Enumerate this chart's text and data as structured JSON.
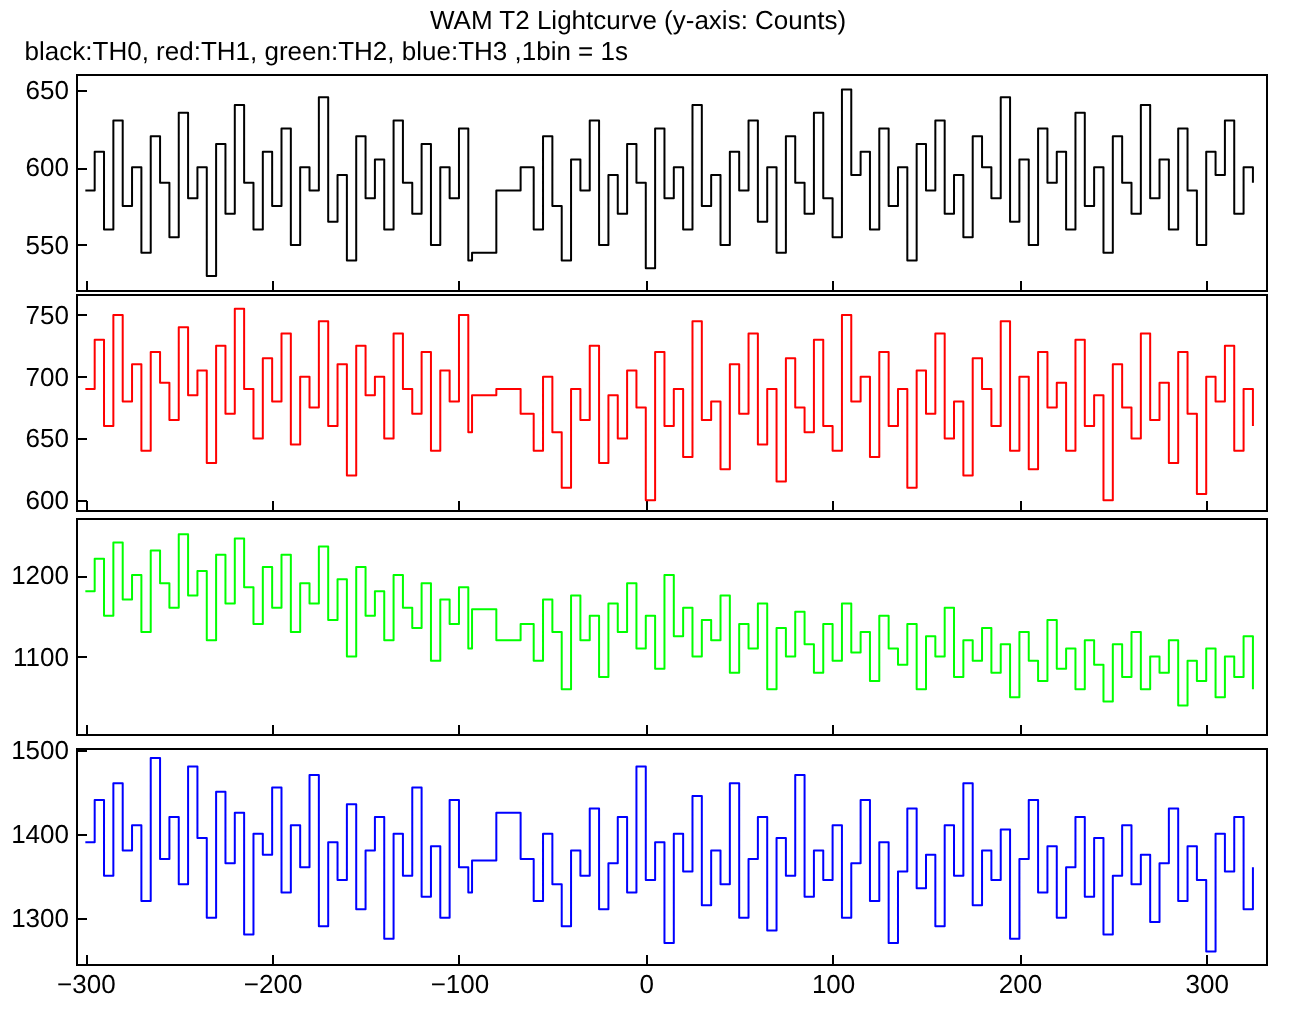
{
  "chart_data": [
    {
      "type": "step",
      "title": "WAM T2 Lightcurve (y-axis: Counts)",
      "subtitle": "black:TH0, red:TH1, green:TH2, blue:TH3 ,1bin = 1s",
      "tick_labels": "y",
      "xlim": [
        -305,
        332
      ],
      "xticks": [
        -300,
        -200,
        -100,
        0,
        100,
        200,
        300
      ],
      "ylim": [
        521,
        660
      ],
      "yticks": [
        550,
        600,
        650
      ],
      "x": [
        -300,
        -295,
        -290,
        -285,
        -280,
        -275,
        -270,
        -265,
        -260,
        -255,
        -250,
        -245,
        -240,
        -235,
        -230,
        -225,
        -220,
        -215,
        -210,
        -205,
        -200,
        -195,
        -190,
        -185,
        -180,
        -175,
        -170,
        -165,
        -160,
        -155,
        -150,
        -145,
        -140,
        -135,
        -130,
        -125,
        -120,
        -115,
        -110,
        -105,
        -100,
        -95,
        -93,
        -80,
        -67,
        -60,
        -55,
        -50,
        -45,
        -40,
        -35,
        -30,
        -25,
        -20,
        -15,
        -10,
        -5,
        0,
        5,
        10,
        15,
        20,
        25,
        30,
        35,
        40,
        45,
        50,
        55,
        60,
        65,
        70,
        75,
        80,
        85,
        90,
        95,
        100,
        105,
        110,
        115,
        120,
        125,
        130,
        135,
        140,
        145,
        150,
        155,
        160,
        165,
        170,
        175,
        180,
        185,
        190,
        195,
        200,
        205,
        210,
        215,
        220,
        225,
        230,
        235,
        240,
        245,
        250,
        255,
        260,
        265,
        270,
        275,
        280,
        285,
        290,
        295,
        300,
        305,
        310,
        315,
        320,
        325
      ],
      "series": [
        {
          "color": "#000000",
          "values": [
            585,
            610,
            560,
            630,
            575,
            600,
            545,
            620,
            590,
            555,
            635,
            580,
            600,
            530,
            615,
            570,
            640,
            590,
            560,
            610,
            575,
            625,
            550,
            600,
            585,
            645,
            565,
            595,
            540,
            620,
            580,
            605,
            560,
            630,
            590,
            570,
            615,
            550,
            600,
            580,
            625,
            540,
            545,
            585,
            600,
            560,
            620,
            575,
            540,
            605,
            585,
            630,
            550,
            595,
            570,
            615,
            590,
            535,
            625,
            580,
            600,
            560,
            640,
            575,
            595,
            550,
            610,
            585,
            630,
            565,
            600,
            545,
            620,
            590,
            570,
            635,
            580,
            555,
            650,
            595,
            610,
            560,
            625,
            575,
            600,
            540,
            615,
            585,
            630,
            570,
            595,
            555,
            620,
            600,
            580,
            645,
            565,
            605,
            550,
            625,
            590,
            610,
            560,
            635,
            575,
            600,
            545,
            620,
            590,
            570,
            640,
            580,
            605,
            560,
            625,
            585,
            550,
            610,
            595,
            630,
            570,
            600,
            590
          ]
        }
      ]
    },
    {
      "type": "step",
      "tick_labels": "y",
      "xlim": [
        -305,
        332
      ],
      "xticks": [
        -300,
        -200,
        -100,
        0,
        100,
        200,
        300
      ],
      "ylim": [
        592,
        767
      ],
      "yticks": [
        600,
        650,
        700,
        750
      ],
      "x": [
        -300,
        -295,
        -290,
        -285,
        -280,
        -275,
        -270,
        -265,
        -260,
        -255,
        -250,
        -245,
        -240,
        -235,
        -230,
        -225,
        -220,
        -215,
        -210,
        -205,
        -200,
        -195,
        -190,
        -185,
        -180,
        -175,
        -170,
        -165,
        -160,
        -155,
        -150,
        -145,
        -140,
        -135,
        -130,
        -125,
        -120,
        -115,
        -110,
        -105,
        -100,
        -95,
        -93,
        -80,
        -67,
        -60,
        -55,
        -50,
        -45,
        -40,
        -35,
        -30,
        -25,
        -20,
        -15,
        -10,
        -5,
        0,
        5,
        10,
        15,
        20,
        25,
        30,
        35,
        40,
        45,
        50,
        55,
        60,
        65,
        70,
        75,
        80,
        85,
        90,
        95,
        100,
        105,
        110,
        115,
        120,
        125,
        130,
        135,
        140,
        145,
        150,
        155,
        160,
        165,
        170,
        175,
        180,
        185,
        190,
        195,
        200,
        205,
        210,
        215,
        220,
        225,
        230,
        235,
        240,
        245,
        250,
        255,
        260,
        265,
        270,
        275,
        280,
        285,
        290,
        295,
        300,
        305,
        310,
        315,
        320,
        325
      ],
      "series": [
        {
          "color": "#ff0000",
          "values": [
            690,
            730,
            660,
            750,
            680,
            710,
            640,
            720,
            695,
            665,
            740,
            685,
            705,
            630,
            725,
            670,
            755,
            690,
            650,
            715,
            680,
            735,
            645,
            700,
            675,
            745,
            660,
            710,
            620,
            725,
            685,
            700,
            650,
            735,
            690,
            670,
            720,
            640,
            705,
            680,
            750,
            655,
            685,
            690,
            670,
            640,
            700,
            655,
            610,
            690,
            665,
            725,
            630,
            685,
            650,
            705,
            675,
            600,
            720,
            660,
            690,
            635,
            745,
            665,
            680,
            625,
            710,
            670,
            735,
            645,
            690,
            615,
            715,
            675,
            655,
            730,
            660,
            640,
            750,
            680,
            700,
            635,
            720,
            660,
            690,
            610,
            705,
            670,
            735,
            650,
            680,
            620,
            715,
            690,
            660,
            745,
            640,
            700,
            625,
            720,
            675,
            695,
            640,
            730,
            660,
            685,
            600,
            710,
            675,
            650,
            735,
            665,
            695,
            630,
            720,
            670,
            605,
            700,
            680,
            725,
            640,
            690,
            660
          ]
        }
      ]
    },
    {
      "type": "step",
      "tick_labels": "y",
      "xlim": [
        -305,
        332
      ],
      "xticks": [
        -300,
        -200,
        -100,
        0,
        100,
        200,
        300
      ],
      "ylim": [
        1005,
        1270
      ],
      "yticks": [
        1100,
        1200
      ],
      "x": [
        -300,
        -295,
        -290,
        -285,
        -280,
        -275,
        -270,
        -265,
        -260,
        -255,
        -250,
        -245,
        -240,
        -235,
        -230,
        -225,
        -220,
        -215,
        -210,
        -205,
        -200,
        -195,
        -190,
        -185,
        -180,
        -175,
        -170,
        -165,
        -160,
        -155,
        -150,
        -145,
        -140,
        -135,
        -130,
        -125,
        -120,
        -115,
        -110,
        -105,
        -100,
        -95,
        -93,
        -80,
        -67,
        -60,
        -55,
        -50,
        -45,
        -40,
        -35,
        -30,
        -25,
        -20,
        -15,
        -10,
        -5,
        0,
        5,
        10,
        15,
        20,
        25,
        30,
        35,
        40,
        45,
        50,
        55,
        60,
        65,
        70,
        75,
        80,
        85,
        90,
        95,
        100,
        105,
        110,
        115,
        120,
        125,
        130,
        135,
        140,
        145,
        150,
        155,
        160,
        165,
        170,
        175,
        180,
        185,
        190,
        195,
        200,
        205,
        210,
        215,
        220,
        225,
        230,
        235,
        240,
        245,
        250,
        255,
        260,
        265,
        270,
        275,
        280,
        285,
        290,
        295,
        300,
        305,
        310,
        315,
        320,
        325
      ],
      "series": [
        {
          "color": "#00ff00",
          "values": [
            1180,
            1220,
            1150,
            1240,
            1170,
            1200,
            1130,
            1230,
            1190,
            1160,
            1250,
            1175,
            1205,
            1120,
            1225,
            1165,
            1245,
            1185,
            1140,
            1210,
            1160,
            1225,
            1130,
            1190,
            1165,
            1235,
            1145,
            1195,
            1100,
            1210,
            1150,
            1180,
            1120,
            1200,
            1160,
            1135,
            1190,
            1095,
            1170,
            1140,
            1185,
            1110,
            1158,
            1120,
            1140,
            1095,
            1170,
            1130,
            1060,
            1175,
            1120,
            1150,
            1075,
            1165,
            1130,
            1190,
            1110,
            1150,
            1085,
            1200,
            1125,
            1160,
            1100,
            1145,
            1120,
            1175,
            1080,
            1140,
            1110,
            1165,
            1060,
            1135,
            1100,
            1155,
            1115,
            1080,
            1140,
            1095,
            1165,
            1105,
            1130,
            1070,
            1150,
            1110,
            1090,
            1140,
            1060,
            1125,
            1100,
            1160,
            1075,
            1120,
            1095,
            1135,
            1080,
            1115,
            1050,
            1130,
            1095,
            1070,
            1145,
            1085,
            1110,
            1060,
            1120,
            1090,
            1045,
            1115,
            1075,
            1130,
            1060,
            1100,
            1080,
            1120,
            1040,
            1095,
            1070,
            1110,
            1050,
            1100,
            1075,
            1125,
            1060
          ]
        }
      ]
    },
    {
      "type": "step",
      "xlim": [
        -305,
        332
      ],
      "xticks": [
        -300,
        -200,
        -100,
        0,
        100,
        200,
        300
      ],
      "ylim": [
        1245,
        1502
      ],
      "yticks": [
        1300,
        1400,
        1500
      ],
      "x": [
        -300,
        -295,
        -290,
        -285,
        -280,
        -275,
        -270,
        -265,
        -260,
        -255,
        -250,
        -245,
        -240,
        -235,
        -230,
        -225,
        -220,
        -215,
        -210,
        -205,
        -200,
        -195,
        -190,
        -185,
        -180,
        -175,
        -170,
        -165,
        -160,
        -155,
        -150,
        -145,
        -140,
        -135,
        -130,
        -125,
        -120,
        -115,
        -110,
        -105,
        -100,
        -95,
        -93,
        -80,
        -67,
        -60,
        -55,
        -50,
        -45,
        -40,
        -35,
        -30,
        -25,
        -20,
        -15,
        -10,
        -5,
        0,
        5,
        10,
        15,
        20,
        25,
        30,
        35,
        40,
        45,
        50,
        55,
        60,
        65,
        70,
        75,
        80,
        85,
        90,
        95,
        100,
        105,
        110,
        115,
        120,
        125,
        130,
        135,
        140,
        145,
        150,
        155,
        160,
        165,
        170,
        175,
        180,
        185,
        190,
        195,
        200,
        205,
        210,
        215,
        220,
        225,
        230,
        235,
        240,
        245,
        250,
        255,
        260,
        265,
        270,
        275,
        280,
        285,
        290,
        295,
        300,
        305,
        310,
        315,
        320,
        325
      ],
      "series": [
        {
          "color": "#0000ff",
          "values": [
            1390,
            1440,
            1350,
            1460,
            1380,
            1410,
            1320,
            1490,
            1370,
            1420,
            1340,
            1480,
            1395,
            1300,
            1450,
            1365,
            1425,
            1280,
            1400,
            1375,
            1455,
            1330,
            1410,
            1360,
            1470,
            1290,
            1390,
            1345,
            1435,
            1310,
            1380,
            1420,
            1275,
            1400,
            1350,
            1455,
            1325,
            1385,
            1300,
            1440,
            1360,
            1330,
            1368,
            1425,
            1370,
            1320,
            1400,
            1340,
            1290,
            1380,
            1350,
            1430,
            1310,
            1365,
            1420,
            1330,
            1480,
            1345,
            1390,
            1270,
            1400,
            1355,
            1445,
            1315,
            1380,
            1340,
            1460,
            1300,
            1370,
            1420,
            1285,
            1395,
            1350,
            1470,
            1325,
            1380,
            1345,
            1410,
            1300,
            1365,
            1440,
            1320,
            1390,
            1270,
            1355,
            1430,
            1335,
            1375,
            1290,
            1410,
            1350,
            1460,
            1315,
            1380,
            1345,
            1405,
            1275,
            1370,
            1440,
            1330,
            1385,
            1300,
            1360,
            1420,
            1325,
            1395,
            1280,
            1350,
            1410,
            1340,
            1375,
            1295,
            1365,
            1430,
            1320,
            1385,
            1345,
            1260,
            1400,
            1355,
            1420,
            1310,
            1360
          ]
        }
      ]
    }
  ]
}
